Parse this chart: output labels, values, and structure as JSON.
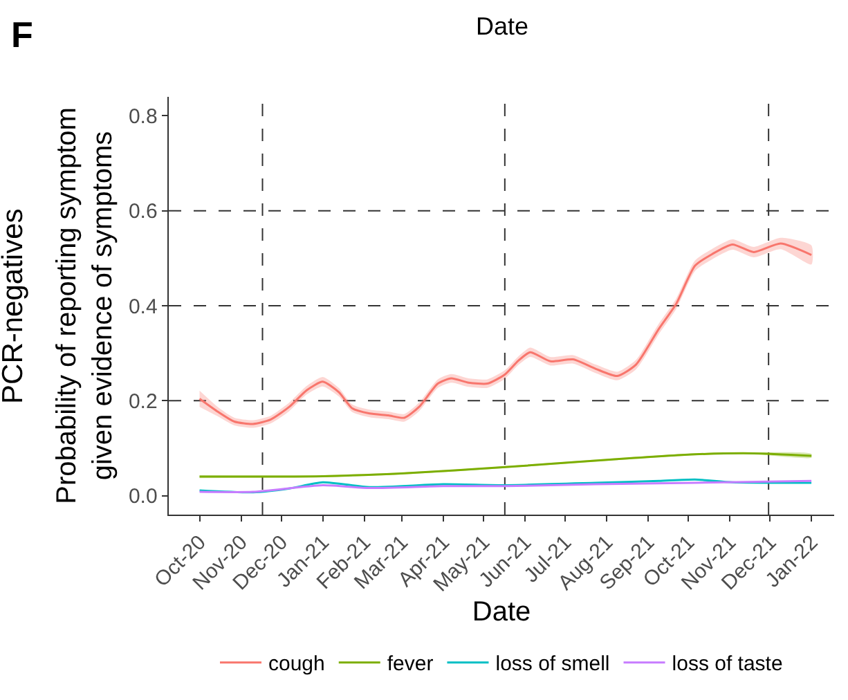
{
  "chart_data": {
    "type": "line",
    "xlabel": "Date",
    "ylabel": "Probability of reporting symptom\ngiven evidence of symptoms",
    "annotations": [
      "F",
      "Date",
      "PCR-negatives"
    ],
    "xlim": [
      "2020-09-08",
      "2022-01-18"
    ],
    "xticks": [
      {
        "value": "2020-10-01",
        "label": "Oct-20"
      },
      {
        "value": "2020-11-01",
        "label": "Nov-20"
      },
      {
        "value": "2020-12-01",
        "label": "Dec-20"
      },
      {
        "value": "2021-01-01",
        "label": "Jan-21"
      },
      {
        "value": "2021-02-01",
        "label": "Feb-21"
      },
      {
        "value": "2021-03-01",
        "label": "Mar-21"
      },
      {
        "value": "2021-04-01",
        "label": "Apr-21"
      },
      {
        "value": "2021-05-01",
        "label": "May-21"
      },
      {
        "value": "2021-06-01",
        "label": "Jun-21"
      },
      {
        "value": "2021-07-01",
        "label": "Jul-21"
      },
      {
        "value": "2021-08-01",
        "label": "Aug-21"
      },
      {
        "value": "2021-09-01",
        "label": "Sep-21"
      },
      {
        "value": "2021-10-01",
        "label": "Oct-21"
      },
      {
        "value": "2021-11-01",
        "label": "Nov-21"
      },
      {
        "value": "2021-12-01",
        "label": "Dec-21"
      },
      {
        "value": "2022-01-01",
        "label": "Jan-22"
      }
    ],
    "ylim": [
      -0.04,
      0.84
    ],
    "yticks": [
      {
        "value": 0,
        "label": "0.0"
      },
      {
        "value": 0.2,
        "label": "0.2"
      },
      {
        "value": 0.4,
        "label": "0.4"
      },
      {
        "value": 0.6,
        "label": "0.6"
      },
      {
        "value": 0.8,
        "label": "0.8"
      }
    ],
    "grid": false,
    "legend": "bottom",
    "marker": "none",
    "line_style": "solid",
    "ref_lines": [
      {
        "axis": "x",
        "value": "2020-11-17",
        "color": "#333333",
        "line_style": "dashed"
      },
      {
        "axis": "x",
        "value": "2021-05-17",
        "color": "#333333",
        "line_style": "dashed"
      },
      {
        "axis": "x",
        "value": "2021-11-30",
        "color": "#333333",
        "line_style": "dashed"
      },
      {
        "axis": "y",
        "value": 0.2,
        "color": "#333333",
        "line_style": "dashed"
      },
      {
        "axis": "y",
        "value": 0.4,
        "color": "#333333",
        "line_style": "dashed"
      },
      {
        "axis": "y",
        "value": 0.6,
        "color": "#333333",
        "line_style": "dashed"
      }
    ],
    "series": [
      {
        "name": "cough",
        "color": "#f8766d",
        "x": [
          "2020-10-01",
          "2020-10-14",
          "2020-10-27",
          "2020-11-10",
          "2020-11-23",
          "2020-12-07",
          "2020-12-20",
          "2021-01-01",
          "2021-01-13",
          "2021-01-23",
          "2021-02-05",
          "2021-02-19",
          "2021-03-03",
          "2021-03-14",
          "2021-03-28",
          "2021-04-07",
          "2021-04-20",
          "2021-05-04",
          "2021-05-17",
          "2021-05-27",
          "2021-06-05",
          "2021-06-20",
          "2021-07-07",
          "2021-07-24",
          "2021-08-09",
          "2021-08-23",
          "2021-09-09",
          "2021-09-22",
          "2021-10-06",
          "2021-10-19",
          "2021-11-03",
          "2021-11-19",
          "2021-12-09",
          "2022-01-01"
        ],
        "values": [
          0.204,
          0.178,
          0.156,
          0.151,
          0.16,
          0.187,
          0.222,
          0.24,
          0.218,
          0.184,
          0.173,
          0.169,
          0.164,
          0.187,
          0.236,
          0.247,
          0.238,
          0.236,
          0.255,
          0.284,
          0.302,
          0.283,
          0.287,
          0.267,
          0.252,
          0.276,
          0.351,
          0.404,
          0.484,
          0.509,
          0.529,
          0.513,
          0.531,
          0.507
        ],
        "lower": [
          0.187,
          0.168,
          0.148,
          0.143,
          0.152,
          0.178,
          0.213,
          0.23,
          0.209,
          0.176,
          0.165,
          0.161,
          0.156,
          0.178,
          0.227,
          0.238,
          0.229,
          0.227,
          0.246,
          0.275,
          0.292,
          0.274,
          0.278,
          0.258,
          0.243,
          0.266,
          0.34,
          0.393,
          0.473,
          0.498,
          0.518,
          0.502,
          0.519,
          0.487
        ],
        "upper": [
          0.221,
          0.188,
          0.164,
          0.159,
          0.168,
          0.196,
          0.231,
          0.25,
          0.227,
          0.192,
          0.181,
          0.177,
          0.172,
          0.196,
          0.245,
          0.256,
          0.247,
          0.245,
          0.264,
          0.293,
          0.312,
          0.292,
          0.296,
          0.276,
          0.261,
          0.286,
          0.362,
          0.415,
          0.495,
          0.52,
          0.54,
          0.524,
          0.543,
          0.527
        ]
      },
      {
        "name": "fever",
        "color": "#7cae00",
        "x": [
          "2020-10-01",
          "2021-01-01",
          "2021-03-03",
          "2021-05-17",
          "2021-08-09",
          "2021-10-06",
          "2021-11-19",
          "2022-01-01"
        ],
        "values": [
          0.04,
          0.041,
          0.047,
          0.06,
          0.077,
          0.087,
          0.089,
          0.084
        ],
        "lower": [
          0.037,
          0.039,
          0.045,
          0.058,
          0.075,
          0.085,
          0.087,
          0.08
        ],
        "upper": [
          0.043,
          0.043,
          0.049,
          0.062,
          0.079,
          0.089,
          0.091,
          0.088
        ]
      },
      {
        "name": "loss of smell",
        "color": "#00bfc4",
        "x": [
          "2020-10-01",
          "2020-11-10",
          "2020-12-07",
          "2021-01-01",
          "2021-02-05",
          "2021-04-01",
          "2021-05-17",
          "2021-07-24",
          "2021-09-09",
          "2021-10-06",
          "2021-11-03",
          "2022-01-01"
        ],
        "values": [
          0.011,
          0.007,
          0.015,
          0.028,
          0.018,
          0.024,
          0.022,
          0.027,
          0.031,
          0.034,
          0.028,
          0.027
        ]
      },
      {
        "name": "loss of taste",
        "color": "#c77cff",
        "x": [
          "2020-10-01",
          "2020-11-10",
          "2021-01-01",
          "2021-02-05",
          "2021-04-01",
          "2021-05-17",
          "2021-07-24",
          "2021-10-06",
          "2022-01-01"
        ],
        "values": [
          0.008,
          0.008,
          0.022,
          0.016,
          0.02,
          0.02,
          0.024,
          0.027,
          0.031
        ]
      }
    ]
  }
}
